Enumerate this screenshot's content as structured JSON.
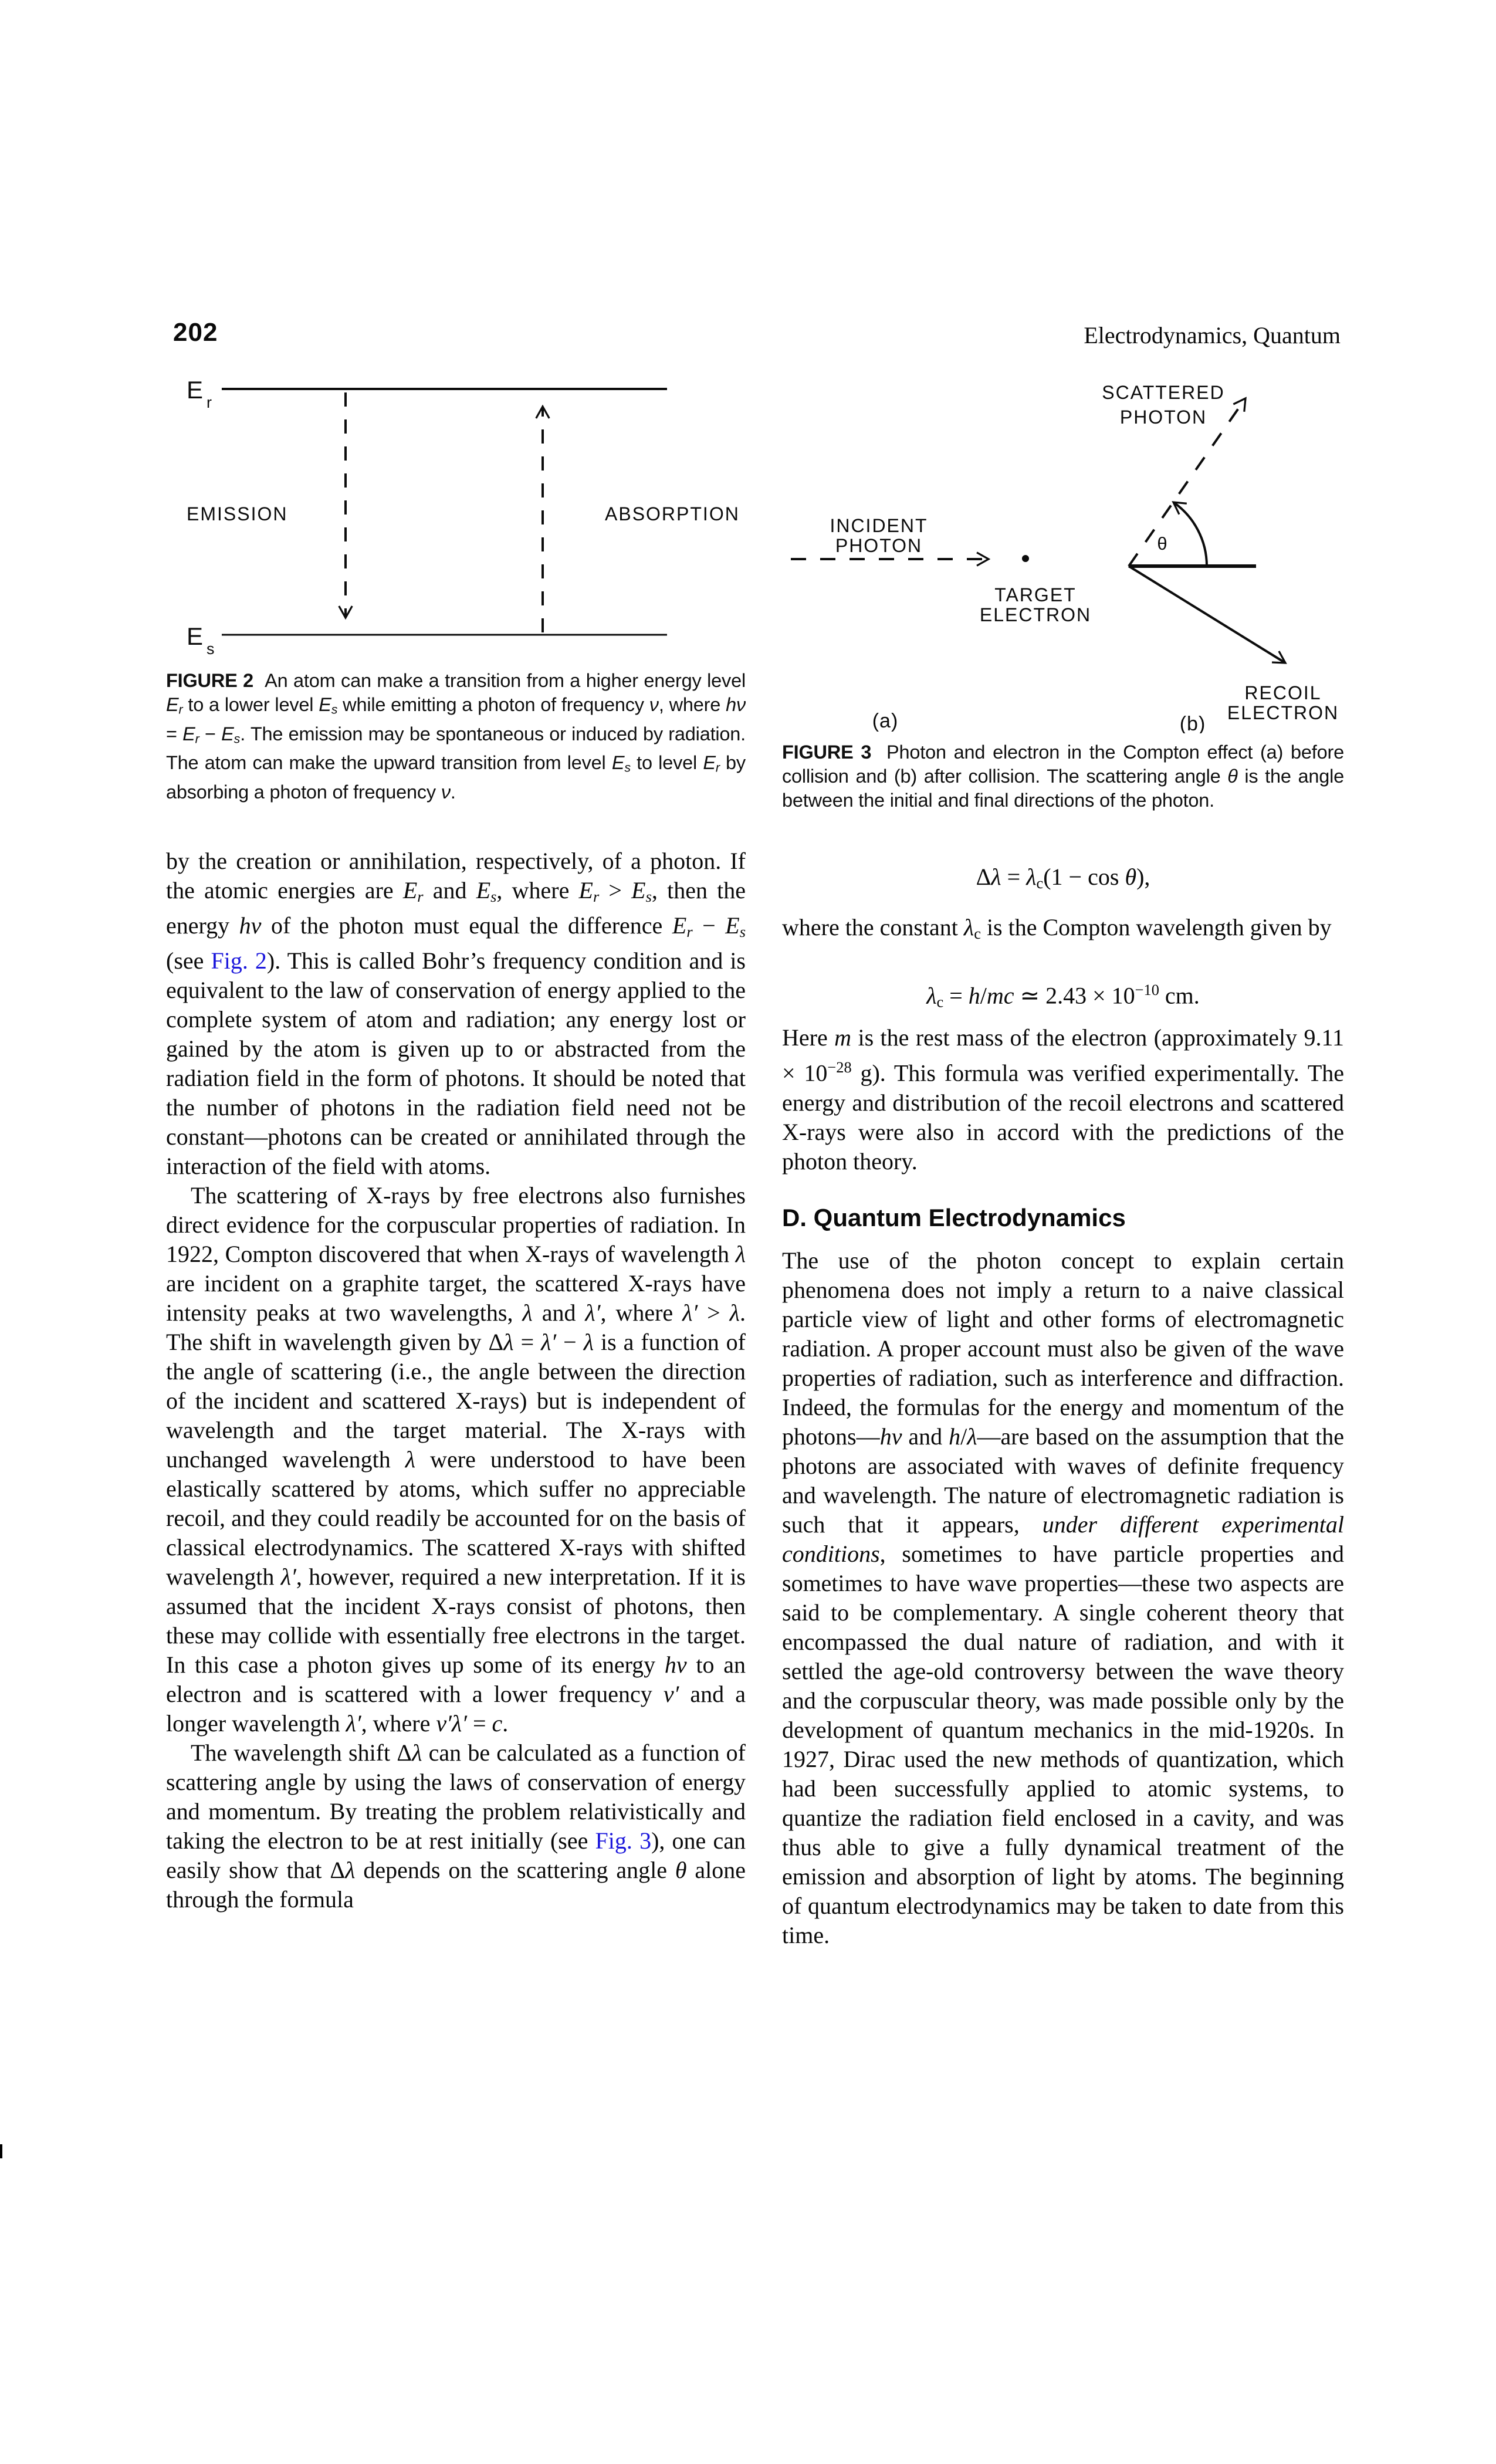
{
  "header": {
    "page_number": "202",
    "running_title": "Electrodynamics, Quantum"
  },
  "colors": {
    "ink": "#0c0c0c",
    "link_blue": "#1c18dc",
    "background": "#ffffff"
  },
  "figure2": {
    "upper_level": {
      "symbol": "E",
      "subscript": "r"
    },
    "lower_level": {
      "symbol": "E",
      "subscript": "s"
    },
    "emission_label": "EMISSION",
    "absorption_label": "ABSORPTION",
    "caption": [
      {
        "t": "FIGURE 2",
        "s": "b"
      },
      {
        "t": "  An atom can make a transition from a higher energy level "
      },
      {
        "t": "E",
        "s": "i"
      },
      {
        "t": "r",
        "s": "isub"
      },
      {
        "t": " to a lower level "
      },
      {
        "t": "E",
        "s": "i"
      },
      {
        "t": "s",
        "s": "isub"
      },
      {
        "t": " while emitting a photon of frequency "
      },
      {
        "t": "ν",
        "s": "i"
      },
      {
        "t": ", where "
      },
      {
        "t": "hν",
        "s": "i"
      },
      {
        "t": " = "
      },
      {
        "t": "E",
        "s": "i"
      },
      {
        "t": "r",
        "s": "isub"
      },
      {
        "t": " − "
      },
      {
        "t": "E",
        "s": "i"
      },
      {
        "t": "s",
        "s": "isub"
      },
      {
        "t": ". The emission may be spontaneous or induced by radiation. The atom can make the upward transition from level "
      },
      {
        "t": "E",
        "s": "i"
      },
      {
        "t": "s",
        "s": "isub"
      },
      {
        "t": " to level "
      },
      {
        "t": "E",
        "s": "i"
      },
      {
        "t": "r",
        "s": "isub"
      },
      {
        "t": " by absorbing a photon of frequency "
      },
      {
        "t": "ν",
        "s": "i"
      },
      {
        "t": "."
      }
    ]
  },
  "figure3": {
    "scattered_line1": "SCATTERED",
    "scattered_line2": "PHOTON",
    "incident_line1": "INCIDENT",
    "incident_line2": "PHOTON",
    "target_line1": "TARGET",
    "target_line2": "ELECTRON",
    "recoil_line1": "RECOIL",
    "recoil_line2": "ELECTRON",
    "theta_label": "θ",
    "panel_a_label": "(a)",
    "panel_b_label": "(b)",
    "caption": [
      {
        "t": "FIGURE 3",
        "s": "b"
      },
      {
        "t": "  Photon and electron in the Compton effect (a) before collision and (b) after collision. The scattering angle "
      },
      {
        "t": "θ",
        "s": "i"
      },
      {
        "t": " is the angle between the initial and final directions of the photon."
      }
    ]
  },
  "body": {
    "left_column": {
      "paragraphs": [
        {
          "indent": false,
          "runs": [
            {
              "t": "by the creation or annihilation, respectively, of a photon. If the atomic energies are "
            },
            {
              "t": "E",
              "s": "i"
            },
            {
              "t": "r",
              "s": "isub"
            },
            {
              "t": " and "
            },
            {
              "t": "E",
              "s": "i"
            },
            {
              "t": "s",
              "s": "isub"
            },
            {
              "t": ", where "
            },
            {
              "t": "E",
              "s": "i"
            },
            {
              "t": "r",
              "s": "isub"
            },
            {
              "t": " > "
            },
            {
              "t": "E",
              "s": "i"
            },
            {
              "t": "s",
              "s": "isub"
            },
            {
              "t": ", then the energy "
            },
            {
              "t": "hν",
              "s": "i"
            },
            {
              "t": " of the photon must equal the difference "
            },
            {
              "t": "E",
              "s": "i"
            },
            {
              "t": "r",
              "s": "isub"
            },
            {
              "t": " − "
            },
            {
              "t": "E",
              "s": "i"
            },
            {
              "t": "s",
              "s": "isub"
            },
            {
              "t": " (see "
            },
            {
              "t": "Fig. 2",
              "s": "link"
            },
            {
              "t": "). This is called Bohr’s frequency condition and is equivalent to the law of conservation of energy applied to the complete system of atom and radiation; any energy lost or gained by the atom is given up to or abstracted from the radiation field in the form of photons. It should be noted that the number of photons in the radiation field need not be constant—photons can be created or annihilated through the interaction of the field with atoms."
            }
          ]
        },
        {
          "indent": true,
          "runs": [
            {
              "t": "The scattering of X-rays by free electrons also furnishes direct evidence for the corpuscular properties of radiation. In 1922, Compton discovered that when X-rays of wavelength "
            },
            {
              "t": "λ",
              "s": "i"
            },
            {
              "t": " are incident on a graphite target, the scattered X-rays have intensity peaks at two wavelengths, "
            },
            {
              "t": "λ",
              "s": "i"
            },
            {
              "t": " and "
            },
            {
              "t": "λ′",
              "s": "i"
            },
            {
              "t": ", where "
            },
            {
              "t": "λ′",
              "s": "i"
            },
            {
              "t": " > "
            },
            {
              "t": "λ",
              "s": "i"
            },
            {
              "t": ". The shift in wavelength given by "
            },
            {
              "t": "Δ"
            },
            {
              "t": "λ",
              "s": "i"
            },
            {
              "t": " = "
            },
            {
              "t": "λ′",
              "s": "i"
            },
            {
              "t": " − "
            },
            {
              "t": "λ",
              "s": "i"
            },
            {
              "t": " is a function of the angle of scattering (i.e., the angle between the direction of the incident and scattered X-rays) but is independent of wavelength and the target material. The X-rays with unchanged wavelength "
            },
            {
              "t": "λ",
              "s": "i"
            },
            {
              "t": " were understood to have been elastically scattered by atoms, which suffer no appreciable recoil, and they could readily be accounted for on the basis of classical electrodynamics. The scattered X-rays with shifted wavelength "
            },
            {
              "t": "λ′",
              "s": "i"
            },
            {
              "t": ", however, required a new interpretation. If it is assumed that the incident X-rays consist of photons, then these may collide with essentially free electrons in the target. In this case a photon gives up some of its energy "
            },
            {
              "t": "hν",
              "s": "i"
            },
            {
              "t": " to an electron and is scattered with a lower frequency "
            },
            {
              "t": "ν′",
              "s": "i"
            },
            {
              "t": " and a longer wavelength "
            },
            {
              "t": "λ′",
              "s": "i"
            },
            {
              "t": ", where "
            },
            {
              "t": "ν′λ′",
              "s": "i"
            },
            {
              "t": " = "
            },
            {
              "t": "c",
              "s": "i"
            },
            {
              "t": "."
            }
          ]
        },
        {
          "indent": true,
          "runs": [
            {
              "t": "The wavelength shift "
            },
            {
              "t": "Δ"
            },
            {
              "t": "λ",
              "s": "i"
            },
            {
              "t": " can be calculated as a function of scattering angle by using the laws of conservation of energy and momentum. By treating the problem relativistically and taking the electron to be at rest initially (see "
            },
            {
              "t": "Fig. 3",
              "s": "link"
            },
            {
              "t": "), one can easily show that "
            },
            {
              "t": "Δ"
            },
            {
              "t": "λ",
              "s": "i"
            },
            {
              "t": " depends on the scattering angle "
            },
            {
              "t": "θ",
              "s": "i"
            },
            {
              "t": " alone through the formula"
            }
          ]
        }
      ]
    },
    "right_column": {
      "equation_compton_shift": [
        {
          "t": "Δ"
        },
        {
          "t": "λ",
          "s": "i"
        },
        {
          "t": " = "
        },
        {
          "t": "λ",
          "s": "i"
        },
        {
          "t": "c",
          "s": "sub"
        },
        {
          "t": "(1 − cos "
        },
        {
          "t": "θ",
          "s": "i"
        },
        {
          "t": "),"
        }
      ],
      "where_text": [
        {
          "t": "where the constant "
        },
        {
          "t": "λ",
          "s": "i"
        },
        {
          "t": "c",
          "s": "sub"
        },
        {
          "t": " is the Compton wavelength given by"
        }
      ],
      "equation_compton_wavelength": [
        {
          "t": "λ",
          "s": "i"
        },
        {
          "t": "c",
          "s": "sub"
        },
        {
          "t": " = "
        },
        {
          "t": "h",
          "s": "i"
        },
        {
          "t": "/"
        },
        {
          "t": "mc",
          "s": "i"
        },
        {
          "t": " ≃ 2.43 × 10"
        },
        {
          "t": "−10",
          "s": "sup"
        },
        {
          "t": " cm."
        }
      ],
      "rest_mass_paragraph": [
        {
          "t": "Here "
        },
        {
          "t": "m",
          "s": "i"
        },
        {
          "t": " is the rest mass of the electron (approximately 9.11 × 10"
        },
        {
          "t": "−28",
          "s": "sup"
        },
        {
          "t": " g). This formula was verified experimentally. The energy and distribution of the recoil electrons and scattered X-rays were also in accord with the predictions of the photon theory."
        }
      ],
      "section_heading": "D. Quantum Electrodynamics",
      "qed_paragraph": [
        {
          "t": "The use of the photon concept to explain certain phenomena does not imply a return to a naive classical particle view of light and other forms of electromagnetic radiation. A proper account must also be given of the wave properties of radiation, such as interference and diffraction. Indeed, the formulas for the energy and momentum of the photons—"
        },
        {
          "t": "hν",
          "s": "i"
        },
        {
          "t": " and "
        },
        {
          "t": "h",
          "s": "i"
        },
        {
          "t": "/"
        },
        {
          "t": "λ",
          "s": "i"
        },
        {
          "t": "—are based on the assumption that the photons are associated with waves of definite frequency and wavelength. The nature of electromagnetic radiation is such that it appears, "
        },
        {
          "t": "under different experimental conditions",
          "s": "i"
        },
        {
          "t": ", sometimes to have particle properties and sometimes to have wave properties—these two aspects are said to be complementary. A single coherent theory that encompassed the dual nature of radiation, and with it settled the age-old controversy between the wave theory and the corpuscular theory, was made possible only by the development of quantum mechanics in the mid-1920s. In 1927, Dirac used the new methods of quantization, which had been successfully applied to atomic systems, to quantize the radiation field enclosed in a cavity, and was thus able to give a fully dynamical treatment of the emission and absorption of light by atoms. The beginning of quantum electrodynamics may be taken to date from this time."
        }
      ]
    }
  }
}
